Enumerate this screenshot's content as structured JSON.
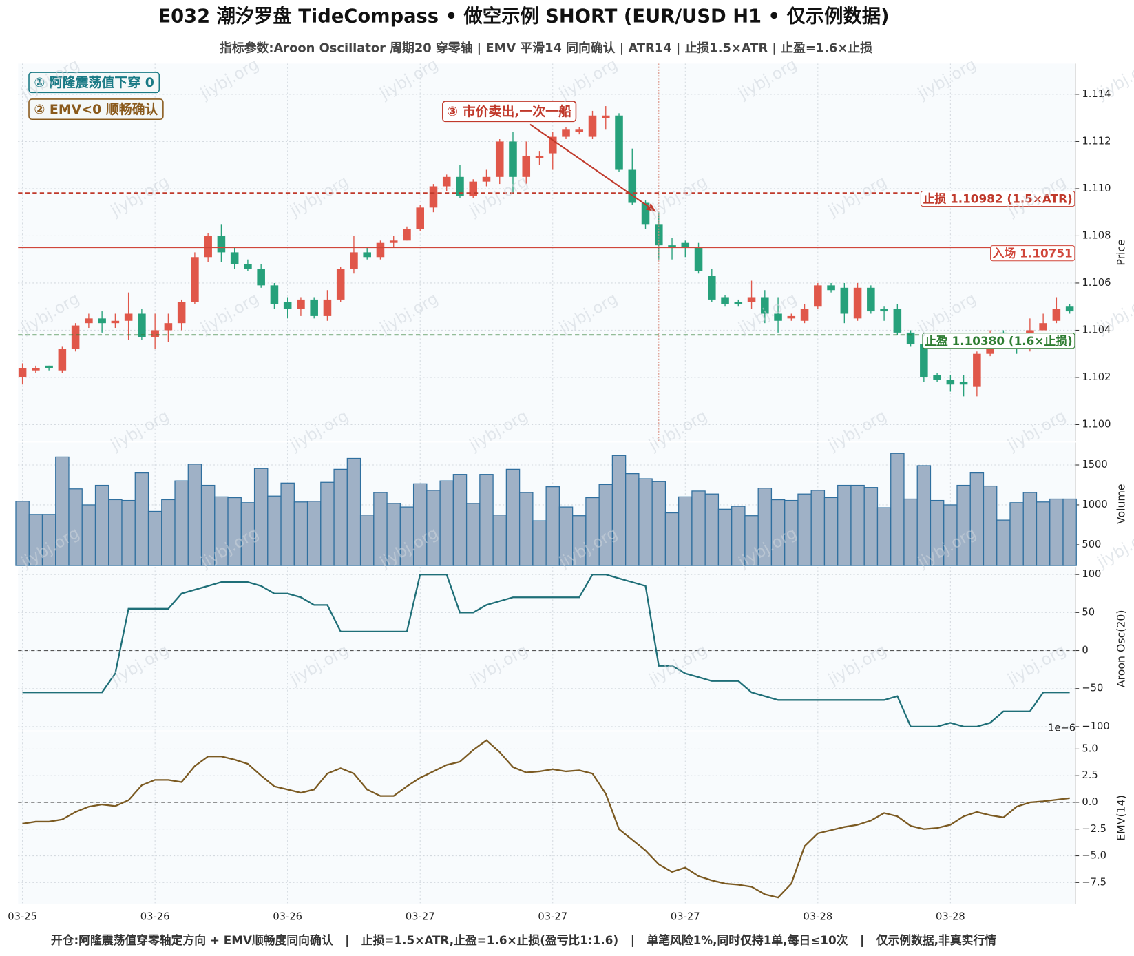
{
  "title": "E032 潮汐罗盘 TideCompass • 做空示例 SHORT (EUR/USD H1 • 仅示例数据)",
  "subtitle": "指标参数:Aroon Oscillator 周期20 穿零轴 | EMV 平滑14 同向确认 | ATR14 | 止损1.5×ATR | 止盈=1.6×止损",
  "footer": "开仓:阿隆震荡值穿零轴定方向 + EMV顺畅度同向确认   |   止损=1.5×ATR,止盈=1.6×止损(盈亏比1:1.6)   |   单笔风险1%,同时仅持1单,每日≤10次   |   仅示例数据,非真实行情",
  "watermark": "jiybj.org",
  "chart_data": [
    {
      "type": "candlestick",
      "ylabel": "Price",
      "xlim": [
        -0.33,
        79.43
      ],
      "xticks": [
        {
          "value": 0,
          "label": "03-25"
        },
        {
          "value": 10,
          "label": "03-26"
        },
        {
          "value": 20,
          "label": "03-26"
        },
        {
          "value": 30,
          "label": "03-27"
        },
        {
          "value": 40,
          "label": "03-27"
        },
        {
          "value": 50,
          "label": "03-27"
        },
        {
          "value": 60,
          "label": "03-28"
        },
        {
          "value": 70,
          "label": "03-28"
        }
      ],
      "ylim": [
        1.0993,
        1.1153
      ],
      "yticks": [
        {
          "value": 1.1,
          "label": "1.100"
        },
        1.102,
        1.104,
        1.106,
        1.108,
        {
          "value": 1.11,
          "label": "1.110"
        },
        1.112,
        1.114
      ],
      "up_color": "#e0574a",
      "down_color": "#26a17b",
      "grid": true,
      "open": [
        1.102,
        1.1023,
        1.1025,
        1.1023,
        1.1032,
        1.1043,
        1.1045,
        1.1043,
        1.1044,
        1.1047,
        1.1037,
        1.104,
        1.1043,
        1.1052,
        1.1071,
        1.108,
        1.1073,
        1.1068,
        1.1066,
        1.1059,
        1.1052,
        1.1049,
        1.1053,
        1.1046,
        1.1053,
        1.1066,
        1.1073,
        1.1071,
        1.1077,
        1.1078,
        1.1083,
        1.1092,
        1.1101,
        1.1105,
        1.1097,
        1.1103,
        1.1105,
        1.112,
        1.1105,
        1.1113,
        1.1115,
        1.1122,
        1.1124,
        1.1122,
        1.113,
        1.1131,
        1.1108,
        1.1094,
        1.1085,
        1.1076,
        1.1077,
        1.1075,
        1.1063,
        1.1054,
        1.1052,
        1.1052,
        1.1054,
        1.1047,
        1.1045,
        1.1044,
        1.105,
        1.1059,
        1.1058,
        1.1045,
        1.1058,
        1.1049,
        1.1049,
        1.1039,
        1.1034,
        1.1021,
        1.1019,
        1.1018,
        1.1016,
        1.103,
        1.1039,
        1.1036,
        1.1033,
        1.104,
        1.1044,
        1.105
      ],
      "high": [
        1.1026,
        1.1025,
        1.1025,
        1.1033,
        1.1043,
        1.1047,
        1.1048,
        1.1047,
        1.1056,
        1.1049,
        1.1047,
        1.1047,
        1.1053,
        1.1073,
        1.1081,
        1.1085,
        1.1075,
        1.107,
        1.1068,
        1.106,
        1.1054,
        1.1054,
        1.1054,
        1.1057,
        1.1067,
        1.108,
        1.1075,
        1.1078,
        1.108,
        1.1084,
        1.1093,
        1.1102,
        1.1106,
        1.111,
        1.1104,
        1.1108,
        1.1121,
        1.1124,
        1.112,
        1.1116,
        1.1124,
        1.1126,
        1.1126,
        1.1133,
        1.1135,
        1.1132,
        1.1117,
        1.1095,
        1.109,
        1.1079,
        1.1078,
        1.1077,
        1.1066,
        1.1055,
        1.1053,
        1.1061,
        1.1057,
        1.1054,
        1.1047,
        1.1051,
        1.106,
        1.106,
        1.106,
        1.106,
        1.1059,
        1.105,
        1.1051,
        1.104,
        1.1039,
        1.1022,
        1.1021,
        1.1021,
        1.1031,
        1.104,
        1.104,
        1.1039,
        1.1045,
        1.1047,
        1.1054,
        1.1051
      ],
      "low": [
        1.1017,
        1.1022,
        1.1023,
        1.1022,
        1.1031,
        1.1041,
        1.1039,
        1.1041,
        1.1036,
        1.1036,
        1.1032,
        1.1035,
        1.104,
        1.1051,
        1.1069,
        1.1069,
        1.1066,
        1.1065,
        1.1058,
        1.1049,
        1.1045,
        1.1046,
        1.1045,
        1.1044,
        1.1052,
        1.1064,
        1.107,
        1.107,
        1.1075,
        1.1078,
        1.1082,
        1.109,
        1.1099,
        1.1096,
        1.1096,
        1.1101,
        1.1102,
        1.1098,
        1.1102,
        1.111,
        1.1108,
        1.1121,
        1.1123,
        1.1121,
        1.1125,
        1.1107,
        1.1093,
        1.1083,
        1.107,
        1.107,
        1.1071,
        1.1064,
        1.1052,
        1.105,
        1.105,
        1.1049,
        1.1043,
        1.1039,
        1.1044,
        1.1043,
        1.1049,
        1.1056,
        1.1043,
        1.1044,
        1.1047,
        1.1044,
        1.1038,
        1.1033,
        1.1018,
        1.1018,
        1.1014,
        1.1012,
        1.1012,
        1.1029,
        1.1034,
        1.103,
        1.1031,
        1.104,
        1.1043,
        1.1047
      ],
      "close": [
        1.1024,
        1.1024,
        1.1024,
        1.1032,
        1.1042,
        1.1045,
        1.1043,
        1.1044,
        1.1047,
        1.1037,
        1.104,
        1.1043,
        1.1052,
        1.1071,
        1.108,
        1.1073,
        1.1068,
        1.1066,
        1.1059,
        1.1051,
        1.1049,
        1.1053,
        1.1046,
        1.1053,
        1.1066,
        1.1073,
        1.1071,
        1.1077,
        1.1078,
        1.1083,
        1.1092,
        1.1101,
        1.1105,
        1.1097,
        1.1103,
        1.1105,
        1.112,
        1.1105,
        1.1114,
        1.1114,
        1.1122,
        1.1125,
        1.1125,
        1.1131,
        1.1131,
        1.1108,
        1.1094,
        1.1085,
        1.1076,
        1.1075,
        1.1075,
        1.1065,
        1.1053,
        1.1051,
        1.1051,
        1.1054,
        1.1047,
        1.1044,
        1.1046,
        1.1049,
        1.1059,
        1.1057,
        1.1047,
        1.1058,
        1.1048,
        1.1048,
        1.1039,
        1.1034,
        1.102,
        1.1019,
        1.1017,
        1.1017,
        1.103,
        1.1038,
        1.1037,
        1.1035,
        1.104,
        1.1043,
        1.1049,
        1.1048
      ],
      "hlines": [
        {
          "name": "止损 1.10982 (1.5×ATR)",
          "value": 1.10982,
          "color": "#c0392b",
          "style": "dashed"
        },
        {
          "name": "入场 1.10751",
          "value": 1.10751,
          "color": "#d0463a",
          "style": "solid"
        },
        {
          "name": "止盈 1.10380 (1.6×止损)",
          "value": 1.1038,
          "color": "#2e7d32",
          "style": "dashed"
        }
      ],
      "vline_x": 48,
      "annotation": "③ 市价卖出,一次一船",
      "notes": [
        {
          "text": "① 阿隆震荡值下穿 0",
          "color": "#1a7a85"
        },
        {
          "text": "② EMV<0 顺畅确认",
          "color": "#8a5a1c"
        }
      ]
    },
    {
      "type": "bar",
      "ylabel": "Volume",
      "ylim": [
        240,
        1780
      ],
      "yticks": [
        500,
        1000,
        1500
      ],
      "color": "#9fb1c6",
      "edge_color": "#2f6f9f",
      "grid": true,
      "values": [
        1045,
        880,
        880,
        1600,
        1200,
        1000,
        1245,
        1065,
        1055,
        1400,
        918,
        1065,
        1300,
        1510,
        1245,
        1100,
        1090,
        1027,
        1455,
        1110,
        1273,
        1036,
        1045,
        1282,
        1445,
        1582,
        873,
        1155,
        1018,
        973,
        1264,
        1182,
        1300,
        1382,
        1018,
        1382,
        873,
        1445,
        1155,
        800,
        1227,
        973,
        864,
        1090,
        1255,
        1618,
        1391,
        1327,
        1291,
        900,
        1100,
        1173,
        1136,
        945,
        982,
        864,
        1209,
        1064,
        1055,
        1136,
        1182,
        1091,
        1245,
        1245,
        1218,
        964,
        1645,
        1073,
        1491,
        1055,
        1000,
        1245,
        1400,
        1236,
        809,
        1027,
        1155,
        1036,
        1073,
        1073
      ]
    },
    {
      "type": "line",
      "ylabel": "Aroon Osc(20)",
      "ylim": [
        -105,
        110
      ],
      "yticks": [
        {
          "value": -100,
          "label": "−100"
        },
        {
          "value": -50,
          "label": "−50"
        },
        0,
        50,
        100
      ],
      "color": "#1f6f78",
      "zero_line": true,
      "grid": true,
      "values": [
        -55,
        -55,
        -55,
        -55,
        -55,
        -55,
        -55,
        -30,
        55,
        55,
        55,
        55,
        75,
        80,
        85,
        90,
        90,
        90,
        85,
        75,
        75,
        70,
        60,
        60,
        25,
        25,
        25,
        25,
        25,
        25,
        100,
        100,
        100,
        50,
        50,
        60,
        65,
        70,
        70,
        70,
        70,
        70,
        70,
        100,
        100,
        95,
        90,
        85,
        -20,
        -20,
        -30,
        -35,
        -40,
        -40,
        -40,
        -55,
        -60,
        -65,
        -65,
        -65,
        -65,
        -65,
        -65,
        -65,
        -65,
        -65,
        -60,
        -100,
        -100,
        -100,
        -95,
        -100,
        -100,
        -95,
        -80,
        -80,
        -80,
        -55,
        -55,
        -55
      ]
    },
    {
      "type": "line",
      "ylabel": "EMV(14)",
      "offset_label": "1e−6",
      "ylim": [
        -9.5,
        6.6
      ],
      "yticks": [
        {
          "value": -7.5,
          "label": "−7.5"
        },
        {
          "value": -5,
          "label": "−5.0"
        },
        {
          "value": -2.5,
          "label": "−2.5"
        },
        {
          "value": 0,
          "label": "0.0"
        },
        2.5,
        {
          "value": 5,
          "label": "5.0"
        }
      ],
      "color": "#7b5a22",
      "zero_line": true,
      "grid": true,
      "values": [
        -2.0,
        -1.8,
        -1.8,
        -1.6,
        -0.9,
        -0.4,
        -0.2,
        -0.35,
        0.2,
        1.6,
        2.1,
        2.1,
        1.9,
        3.4,
        4.3,
        4.3,
        4.0,
        3.6,
        2.5,
        1.5,
        1.2,
        0.9,
        1.2,
        2.7,
        3.2,
        2.7,
        1.2,
        0.6,
        0.6,
        1.5,
        2.3,
        2.9,
        3.5,
        3.8,
        4.9,
        5.8,
        4.7,
        3.3,
        2.8,
        2.9,
        3.1,
        2.9,
        3.0,
        2.7,
        0.8,
        -2.5,
        -3.5,
        -4.5,
        -5.8,
        -6.5,
        -6.1,
        -6.9,
        -7.3,
        -7.6,
        -7.7,
        -7.9,
        -8.6,
        -8.9,
        -7.6,
        -4.1,
        -2.9,
        -2.6,
        -2.3,
        -2.1,
        -1.7,
        -1.0,
        -1.3,
        -2.2,
        -2.5,
        -2.4,
        -2.1,
        -1.3,
        -0.9,
        -1.2,
        -1.4,
        -0.4,
        0.0,
        0.1,
        0.25,
        0.4
      ]
    }
  ]
}
